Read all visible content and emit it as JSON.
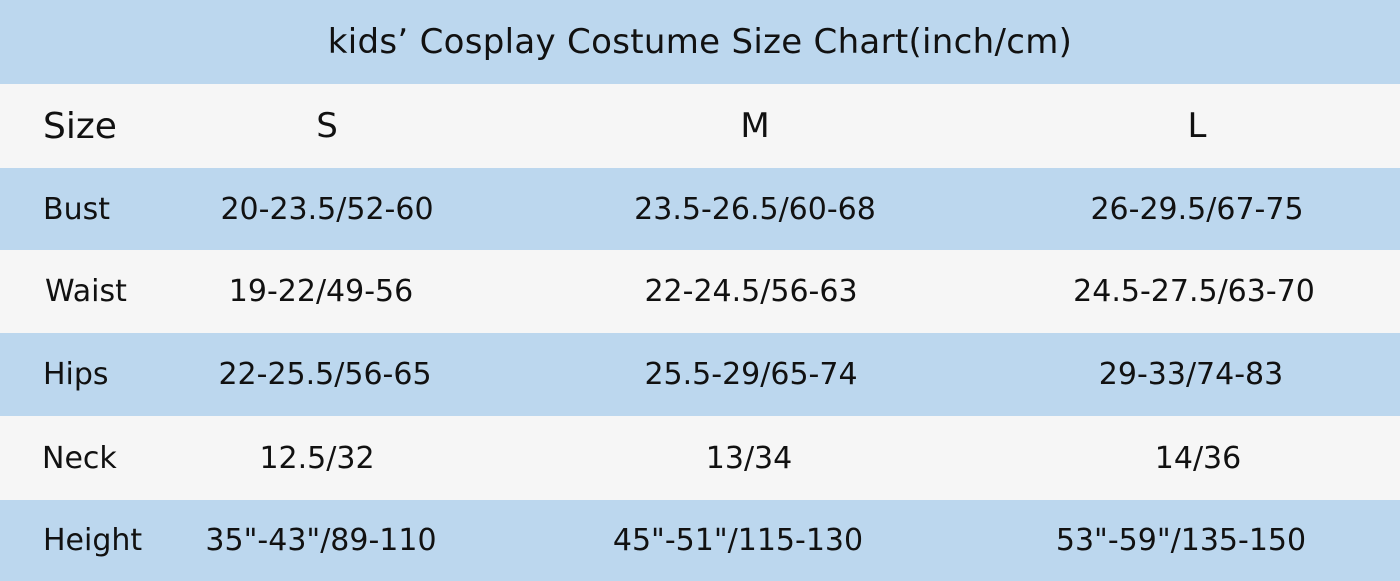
{
  "title": "kids’ Cosplay Costume Size Chart(inch/cm)",
  "colors": {
    "band_blue": "#bcd7ee",
    "band_light": "#f6f6f6"
  },
  "header": {
    "label": "Size",
    "sizes": [
      "S",
      "M",
      "L"
    ]
  },
  "rows": [
    {
      "label": "Bust",
      "values": [
        "20-23.5/52-60",
        "23.5-26.5/60-68",
        "26-29.5/67-75"
      ]
    },
    {
      "label": "Waist",
      "values": [
        "19-22/49-56",
        "22-24.5/56-63",
        "24.5-27.5/63-70"
      ]
    },
    {
      "label": "Hips",
      "values": [
        "22-25.5/56-65",
        "25.5-29/65-74",
        "29-33/74-83"
      ]
    },
    {
      "label": "Neck",
      "values": [
        "12.5/32",
        "13/34",
        "14/36"
      ]
    },
    {
      "label": "Height",
      "values": [
        "35\"-43\"/89-110",
        "45\"-51\"/115-130",
        "53\"-59\"/135-150"
      ]
    }
  ]
}
